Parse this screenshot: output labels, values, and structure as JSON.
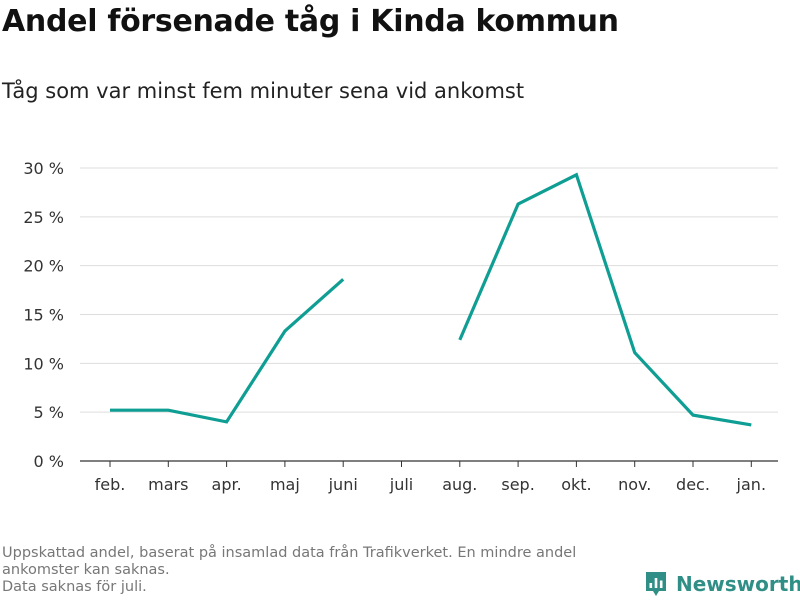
{
  "title": "Andel försenade tåg i Kinda kommun",
  "subtitle": "Tåg som var minst fem minuter sena vid ankomst",
  "footer": {
    "line1": "Uppskattad andel, baserat på insamlad data från Trafikverket. En mindre andel ankomster kan saknas.",
    "line2": "Data saknas för juli."
  },
  "brand": {
    "name": "Newsworthy",
    "icon": "newsworthy-logo-icon",
    "color": "#2f8f87"
  },
  "chart_data": {
    "type": "line",
    "title": "Andel försenade tåg i Kinda kommun",
    "subtitle": "Tåg som var minst fem minuter sena vid ankomst",
    "xlabel": "",
    "ylabel": "",
    "categories": [
      "feb.",
      "mars",
      "apr.",
      "maj",
      "juni",
      "juli",
      "aug.",
      "sep.",
      "okt.",
      "nov.",
      "dec.",
      "jan."
    ],
    "series": [
      {
        "color": "#0f9e93",
        "values": [
          5.2,
          5.2,
          4.0,
          13.3,
          18.6,
          null,
          12.4,
          26.3,
          29.3,
          11.1,
          4.7,
          3.7
        ]
      }
    ],
    "yticks": [
      0,
      5,
      10,
      15,
      20,
      25,
      30
    ],
    "ytick_labels": [
      "0 %",
      "5 %",
      "10 %",
      "15 %",
      "20 %",
      "25 %",
      "30 %"
    ],
    "ylim": [
      0,
      30
    ],
    "grid": true,
    "legend": "none"
  }
}
